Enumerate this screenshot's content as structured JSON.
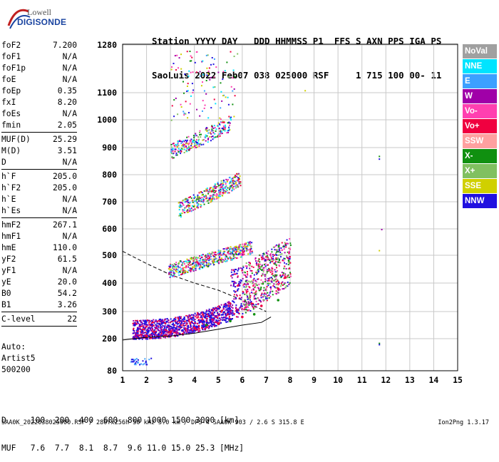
{
  "logo": {
    "line1": "Lowell",
    "line2": "DIGISONDE"
  },
  "header": {
    "labels": "Station YYYY DAY   DDD HHMMSS P1  FFS S AXN PPS IGA PS",
    "values": "SaoLuis 2022 Feb07 038 025000 RSF     1 715 100 00- 11"
  },
  "params": [
    [
      {
        "name": "foF2",
        "value": "7.200"
      },
      {
        "name": "foF1",
        "value": "N/A"
      },
      {
        "name": "foF1p",
        "value": "N/A"
      },
      {
        "name": "foE",
        "value": "N/A"
      },
      {
        "name": "foEp",
        "value": "0.35"
      },
      {
        "name": "fxI",
        "value": "8.20"
      },
      {
        "name": "foEs",
        "value": "N/A"
      },
      {
        "name": "fmin",
        "value": "2.05"
      }
    ],
    [
      {
        "name": "MUF(D)",
        "value": "25.29"
      },
      {
        "name": "M(D)",
        "value": "3.51"
      },
      {
        "name": "D",
        "value": "N/A"
      }
    ],
    [
      {
        "name": "h`F",
        "value": "205.0"
      },
      {
        "name": "h`F2",
        "value": "205.0"
      },
      {
        "name": "h`E",
        "value": "N/A"
      },
      {
        "name": "h`Es",
        "value": "N/A"
      }
    ],
    [
      {
        "name": "hmF2",
        "value": "267.1"
      },
      {
        "name": "hmF1",
        "value": "N/A"
      },
      {
        "name": "hmE",
        "value": "110.0"
      },
      {
        "name": "yF2",
        "value": "61.5"
      },
      {
        "name": "yF1",
        "value": "N/A"
      },
      {
        "name": "yE",
        "value": "20.0"
      },
      {
        "name": "B0",
        "value": "54.2"
      },
      {
        "name": "B1",
        "value": "3.26"
      }
    ],
    [
      {
        "name": "C-level",
        "value": "22"
      }
    ]
  ],
  "auto": {
    "line1": "Auto:",
    "line2": "Artist5",
    "line3": "500200"
  },
  "legend": [
    {
      "label": "NoVal",
      "color": "#a0a0a0"
    },
    {
      "label": "NNE",
      "color": "#00e4ff"
    },
    {
      "label": "E",
      "color": "#3ca0ff"
    },
    {
      "label": "W",
      "color": "#a000a8"
    },
    {
      "label": "Vo-",
      "color": "#ff40b0"
    },
    {
      "label": "Vo+",
      "color": "#f00040"
    },
    {
      "label": "SSW",
      "color": "#ffa0a0"
    },
    {
      "label": "X-",
      "color": "#109010"
    },
    {
      "label": "X+",
      "color": "#80c060"
    },
    {
      "label": "SSE",
      "color": "#d0d000"
    },
    {
      "label": "NNW",
      "color": "#2010e0"
    }
  ],
  "bottom_table": {
    "row1": "D     100  200  400  600  800 1000 1500 3000 [km]",
    "row2": "MUF   7.6  7.7  8.1  8.7  9.6 11.0 15.0 25.3 [MHz]"
  },
  "footer": "SAA0K_2022038025000.RSF / 280fx256h 50 kHz 5.0 km / DPS-4 SAA0K 903 / 2.6 S 315.8 E",
  "version": "Ion2Png 1.3.17",
  "chart_data": {
    "type": "scatter",
    "title": "",
    "xlabel": "",
    "ylabel": "",
    "xlim": [
      1,
      15
    ],
    "ylim": [
      80,
      1280
    ],
    "xticks": [
      "1",
      "2",
      "3",
      "4",
      "5",
      "6",
      "7",
      "8",
      "9",
      "10",
      "11",
      "12",
      "13",
      "14",
      "15"
    ],
    "yticks": [
      "80",
      "200",
      "300",
      "400",
      "500",
      "600",
      "700",
      "800",
      "900",
      "1000",
      "1100",
      "1280"
    ],
    "grid": true,
    "legend_placement": "right",
    "series": [
      {
        "name": "Vo+",
        "points": [
          [
            2.0,
            210
          ],
          [
            3.0,
            225
          ],
          [
            4.0,
            240
          ],
          [
            5.0,
            255
          ],
          [
            6.0,
            280
          ],
          [
            6.8,
            320
          ],
          [
            7.5,
            380
          ],
          [
            7.8,
            420
          ]
        ]
      },
      {
        "name": "NNW",
        "points": [
          [
            1.5,
            200
          ],
          [
            2.5,
            215
          ],
          [
            3.5,
            230
          ],
          [
            4.5,
            250
          ],
          [
            5.5,
            270
          ]
        ]
      },
      {
        "name": "X-",
        "points": [
          [
            4.5,
            250
          ],
          [
            5.5,
            265
          ],
          [
            6.5,
            290
          ],
          [
            7.5,
            340
          ]
        ]
      }
    ],
    "model_profile": [
      [
        1.0,
        515
      ],
      [
        2.0,
        470
      ],
      [
        3.0,
        430
      ],
      [
        4.0,
        400
      ],
      [
        5.0,
        375
      ],
      [
        6.0,
        340
      ],
      [
        7.0,
        300
      ]
    ],
    "trace_curve": [
      [
        1.0,
        195
      ],
      [
        2.0,
        205
      ],
      [
        3.0,
        210
      ],
      [
        4.0,
        220
      ],
      [
        5.0,
        235
      ],
      [
        6.0,
        250
      ],
      [
        6.8,
        260
      ],
      [
        7.2,
        280
      ]
    ]
  }
}
